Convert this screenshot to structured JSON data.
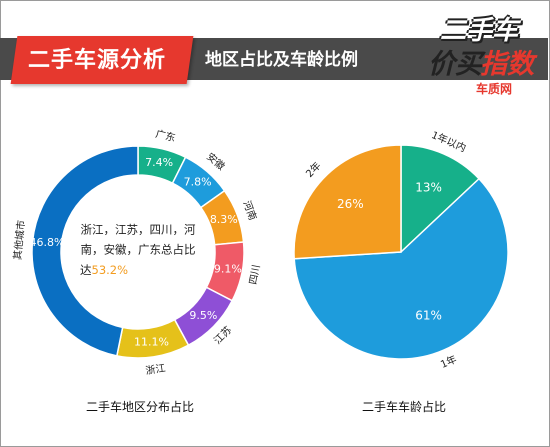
{
  "header": {
    "title": "二手车源分析",
    "subtitle": "地区占比及车龄比例",
    "logo_line1": "二手车",
    "logo_line2a": "价",
    "logo_line2b": "买",
    "logo_line2c": "指数",
    "logo_site": "车质网",
    "accent_color": "#e6382e"
  },
  "chart_data": [
    {
      "type": "pie",
      "variant": "donut",
      "title": "二手车地区分布占比",
      "start_angle_deg": 0,
      "slices": [
        {
          "label": "广东",
          "value": 7.4,
          "value_label": "7.4%",
          "color": "#16b08a"
        },
        {
          "label": "安徽",
          "value": 7.8,
          "value_label": "7.8%",
          "color": "#1e9cdc"
        },
        {
          "label": "河南",
          "value": 8.3,
          "value_label": "8.3%",
          "color": "#f39c1f"
        },
        {
          "label": "四川",
          "value": 9.1,
          "value_label": "9.1%",
          "color": "#ef5a67"
        },
        {
          "label": "江苏",
          "value": 9.5,
          "value_label": "9.5%",
          "color": "#8e4fd6"
        },
        {
          "label": "浙江",
          "value": 11.1,
          "value_label": "11.1%",
          "color": "#e5c11a"
        },
        {
          "label": "其他城市",
          "value": 46.8,
          "value_label": "46.8%",
          "color": "#0a6fc2"
        }
      ],
      "center_annotation": {
        "line1": "浙江，江苏，四川，河",
        "line2": "南，安徽，广东总占比",
        "line3_prefix": "达",
        "highlight": "53.2%",
        "highlight_color": "#f39c1f"
      }
    },
    {
      "type": "pie",
      "title": "二手车车龄占比",
      "start_angle_deg": 0,
      "slices": [
        {
          "label": "1年以内",
          "value": 13,
          "value_label": "13%",
          "color": "#16b08a"
        },
        {
          "label": "1年",
          "value": 61,
          "value_label": "61%",
          "color": "#1e9cdc"
        },
        {
          "label": "2年",
          "value": 26,
          "value_label": "26%",
          "color": "#f39c1f"
        }
      ]
    }
  ]
}
